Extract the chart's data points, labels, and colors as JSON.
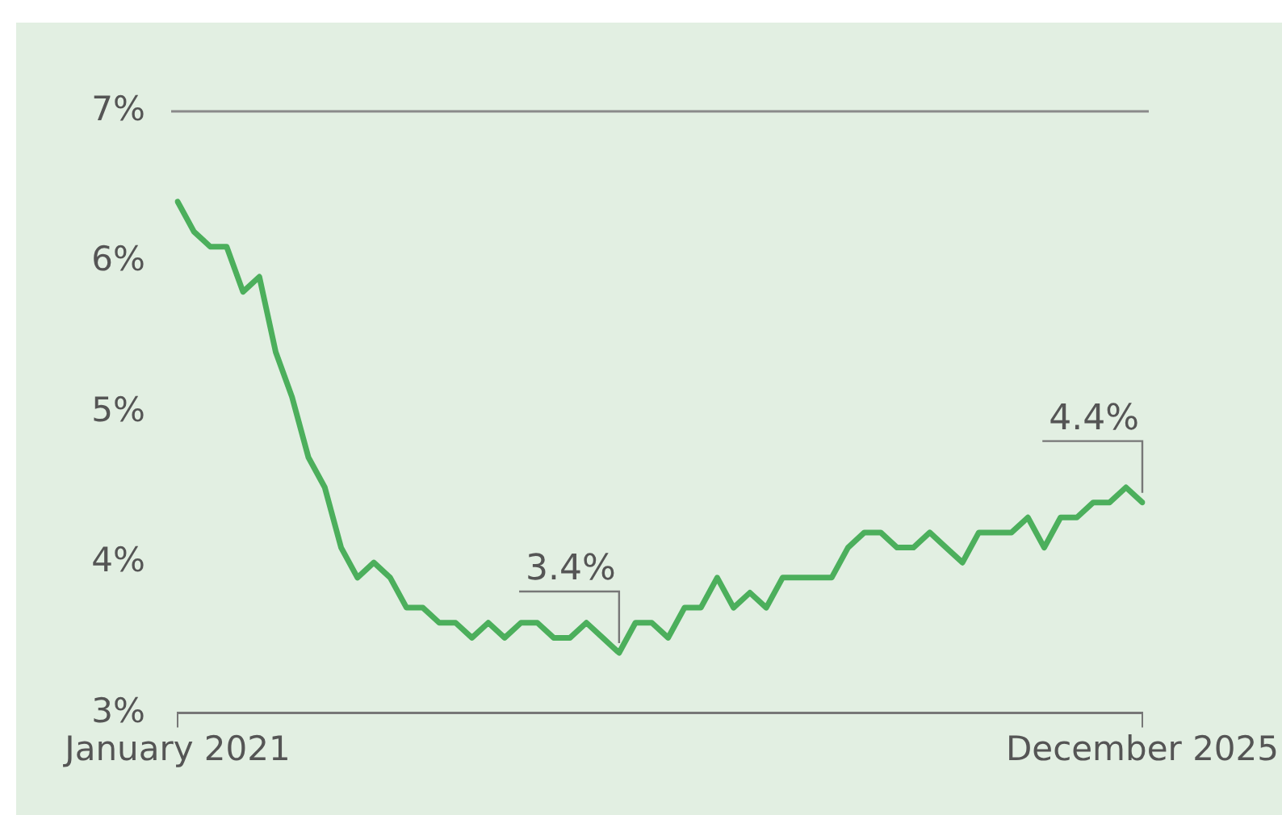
{
  "chart_data": {
    "type": "line",
    "categories": [
      "January 2021",
      null,
      null,
      null,
      null,
      null,
      null,
      null,
      null,
      null,
      null,
      null,
      null,
      null,
      null,
      null,
      null,
      null,
      null,
      null,
      null,
      null,
      null,
      null,
      null,
      null,
      null,
      null,
      null,
      null,
      null,
      null,
      null,
      null,
      null,
      null,
      null,
      null,
      null,
      null,
      null,
      null,
      null,
      null,
      null,
      null,
      null,
      null,
      null,
      null,
      null,
      null,
      null,
      null,
      null,
      null,
      null,
      null,
      null,
      "December 2025"
    ],
    "series": [
      {
        "color": "#4caf5c",
        "values": [
          6.4,
          6.2,
          6.1,
          6.1,
          5.8,
          5.9,
          5.4,
          5.1,
          4.7,
          4.5,
          4.1,
          3.9,
          4.0,
          3.9,
          3.7,
          3.7,
          3.6,
          3.6,
          3.5,
          3.6,
          3.5,
          3.6,
          3.6,
          3.5,
          3.5,
          3.6,
          3.5,
          3.4,
          3.6,
          3.6,
          3.5,
          3.7,
          3.7,
          3.9,
          3.7,
          3.8,
          3.7,
          3.9,
          3.9,
          3.9,
          3.9,
          4.1,
          4.2,
          4.2,
          4.1,
          4.1,
          4.2,
          4.1,
          4.0,
          4.2,
          4.2,
          4.2,
          4.3,
          4.1,
          4.3,
          4.3,
          4.4,
          4.4,
          4.5,
          4.4
        ],
        "value_labels": [
          null,
          null,
          null,
          null,
          null,
          null,
          null,
          null,
          null,
          null,
          null,
          null,
          null,
          null,
          null,
          null,
          null,
          null,
          null,
          null,
          null,
          null,
          null,
          null,
          null,
          null,
          null,
          "3.4%",
          null,
          null,
          null,
          null,
          null,
          null,
          null,
          null,
          null,
          null,
          null,
          null,
          null,
          null,
          null,
          null,
          null,
          null,
          null,
          null,
          null,
          null,
          null,
          null,
          null,
          null,
          null,
          null,
          null,
          null,
          null,
          "4.4%"
        ]
      }
    ],
    "ylim": [
      3,
      7
    ],
    "yticks": [
      {
        "value": 3,
        "label": "3%"
      },
      {
        "value": 4,
        "label": "4%"
      },
      {
        "value": 5,
        "label": "5%"
      },
      {
        "value": 6,
        "label": "6%"
      },
      {
        "value": 7,
        "label": "7%"
      }
    ],
    "ref_lines": [
      {
        "axis": "y",
        "value": 7,
        "color": "#8a8a8a"
      }
    ],
    "grid": false,
    "legend": false,
    "marker": "none",
    "line_style": "solid"
  }
}
